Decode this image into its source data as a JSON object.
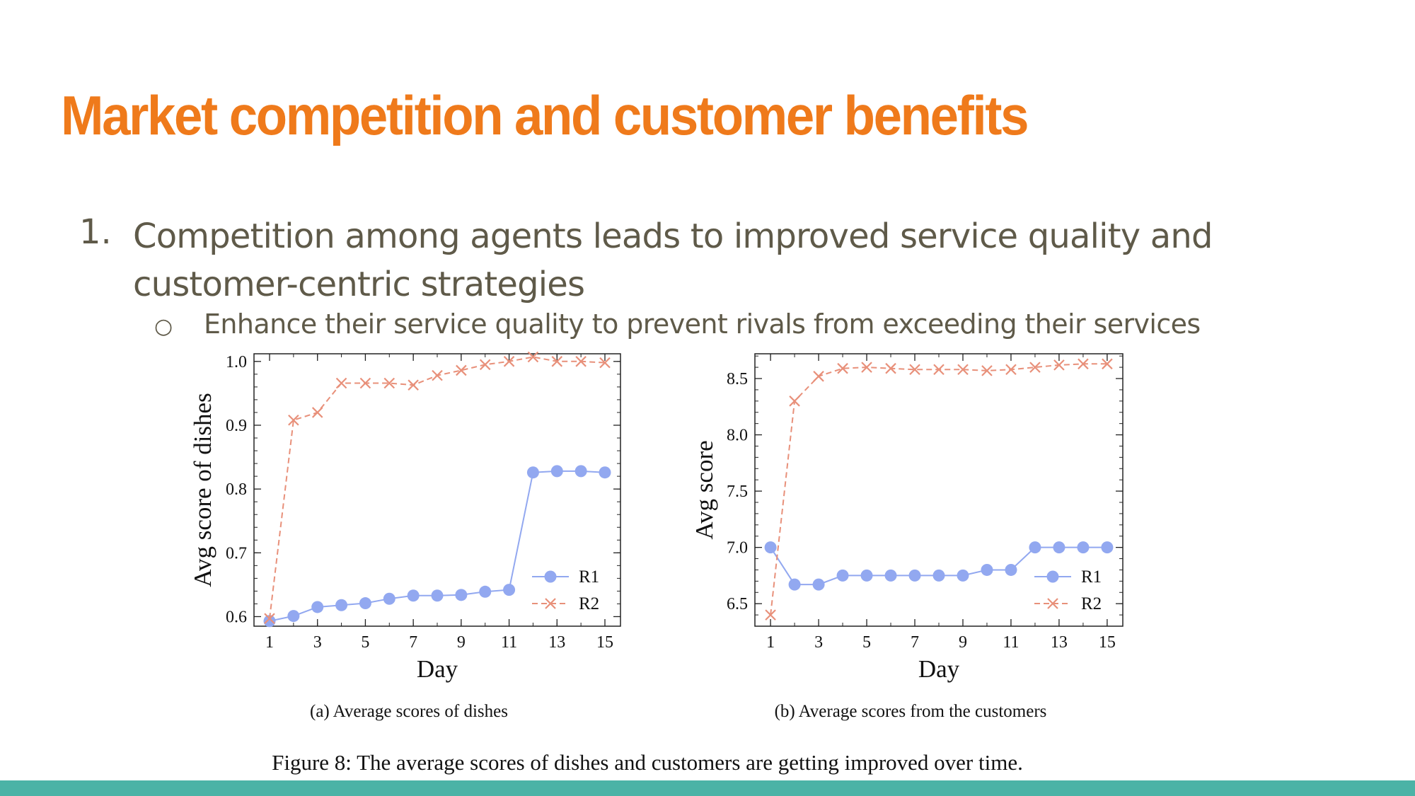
{
  "slide": {
    "title": "Market competition and customer benefits",
    "bullet_number": "1.",
    "bullet_text": "Competition among agents leads to improved service quality and customer-centric strategies",
    "sub_bullet_marker": "○",
    "sub_bullet_text": "Enhance their service quality to prevent rivals from exceeding their services",
    "figure_caption": "Figure 8: The average scores of dishes and customers are getting improved over time."
  },
  "colors": {
    "title": "#ef7a1b",
    "body_text": "#5f5a49",
    "footer_bar": "#4bb3a6",
    "series_r1": "#92a8f0",
    "series_r2": "#e8907a"
  },
  "chart_data": [
    {
      "type": "line",
      "subcaption": "(a)  Average scores of dishes",
      "xlabel": "Day",
      "ylabel": "Avg score of dishes",
      "x": [
        1,
        2,
        3,
        4,
        5,
        6,
        7,
        8,
        9,
        10,
        11,
        12,
        13,
        14,
        15
      ],
      "xlim": [
        0.35,
        15.65
      ],
      "ylim": [
        0.585,
        1.012
      ],
      "xticks": [
        1,
        3,
        5,
        7,
        9,
        11,
        13,
        15
      ],
      "xtick_labels": [
        "1",
        "3",
        "5",
        "7",
        "9",
        "11",
        "13",
        "15"
      ],
      "yticks": [
        0.6,
        0.7,
        0.8,
        0.9,
        1.0
      ],
      "ytick_labels": [
        "0.6",
        "0.7",
        "0.8",
        "0.9",
        "1.0"
      ],
      "grid": false,
      "legend_position": "bottom-right",
      "series": [
        {
          "name": "R1",
          "style": "solid-circle",
          "color": "#92a8f0",
          "values": [
            0.593,
            0.601,
            0.615,
            0.618,
            0.621,
            0.628,
            0.633,
            0.633,
            0.634,
            0.639,
            0.642,
            0.826,
            0.828,
            0.828,
            0.826
          ]
        },
        {
          "name": "R2",
          "style": "dashed-cross",
          "color": "#e8907a",
          "values": [
            0.597,
            0.908,
            0.92,
            0.966,
            0.966,
            0.966,
            0.963,
            0.978,
            0.986,
            0.995,
            1.0,
            1.007,
            1.0,
            1.0,
            0.998
          ]
        }
      ]
    },
    {
      "type": "line",
      "subcaption": "(b)  Average scores from the customers",
      "xlabel": "Day",
      "ylabel": "Avg score",
      "x": [
        1,
        2,
        3,
        4,
        5,
        6,
        7,
        8,
        9,
        10,
        11,
        12,
        13,
        14,
        15
      ],
      "xlim": [
        0.35,
        15.65
      ],
      "ylim": [
        6.3,
        8.72
      ],
      "xticks": [
        1,
        3,
        5,
        7,
        9,
        11,
        13,
        15
      ],
      "xtick_labels": [
        "1",
        "3",
        "5",
        "7",
        "9",
        "11",
        "13",
        "15"
      ],
      "yticks": [
        6.5,
        7.0,
        7.5,
        8.0,
        8.5
      ],
      "ytick_labels": [
        "6.5",
        "7.0",
        "7.5",
        "8.0",
        "8.5"
      ],
      "grid": false,
      "legend_position": "bottom-right",
      "series": [
        {
          "name": "R1",
          "style": "solid-circle",
          "color": "#92a8f0",
          "values": [
            7.0,
            6.67,
            6.67,
            6.75,
            6.75,
            6.75,
            6.75,
            6.75,
            6.75,
            6.8,
            6.8,
            7.0,
            7.0,
            7.0,
            7.0
          ]
        },
        {
          "name": "R2",
          "style": "dashed-cross",
          "color": "#e8907a",
          "values": [
            6.4,
            8.3,
            8.52,
            8.59,
            8.6,
            8.59,
            8.58,
            8.58,
            8.58,
            8.57,
            8.58,
            8.6,
            8.62,
            8.63,
            8.63
          ]
        }
      ]
    }
  ]
}
